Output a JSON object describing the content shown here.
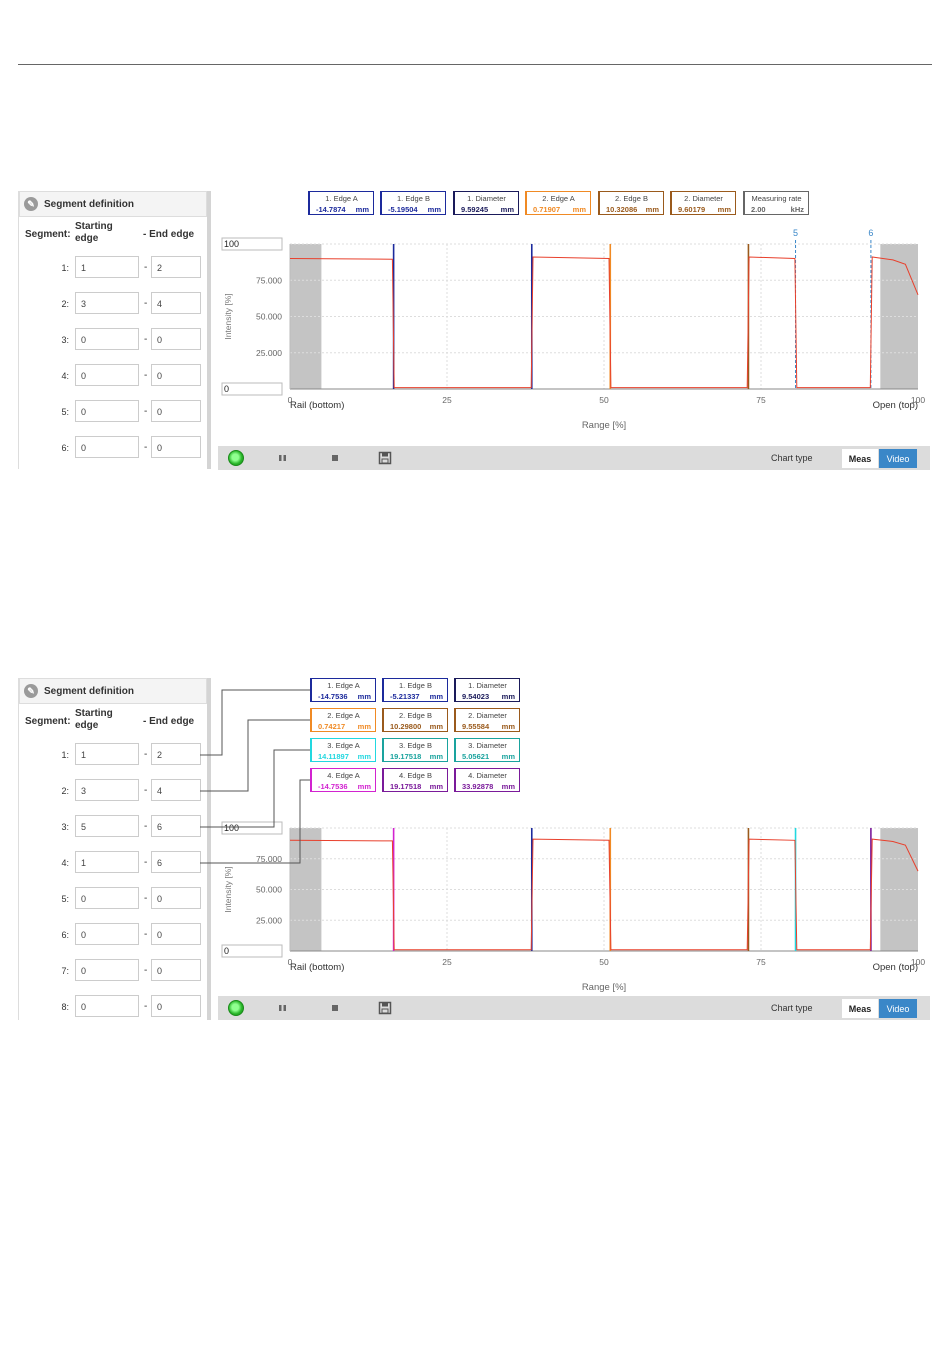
{
  "colors": {
    "red": "#e8402c",
    "navy": "#1c2a9c",
    "orange": "#f08a24",
    "brown": "#9a5a1c",
    "cyan": "#22d8e0",
    "teal": "#1aa39e",
    "magenta": "#d223d0",
    "purple": "#7a1a9a",
    "darknavy": "#1a1a5a"
  },
  "screenshots": [
    {
      "segment_panel": {
        "title": "Segment definition",
        "col_segment": "Segment:",
        "col_start": "Starting edge",
        "col_end": "- End edge",
        "rows": [
          {
            "num": "1:",
            "start": "1",
            "end": "2"
          },
          {
            "num": "2:",
            "start": "3",
            "end": "4"
          },
          {
            "num": "3:",
            "start": "0",
            "end": "0"
          },
          {
            "num": "4:",
            "start": "0",
            "end": "0"
          },
          {
            "num": "5:",
            "start": "0",
            "end": "0"
          },
          {
            "num": "6:",
            "start": "0",
            "end": "0"
          }
        ]
      },
      "measure_boxes": [
        {
          "label": "1. Edge A",
          "value": "-14.7874",
          "unit": "mm",
          "color": "navy"
        },
        {
          "label": "1. Edge B",
          "value": "-5.19504",
          "unit": "mm",
          "color": "navy"
        },
        {
          "label": "1. Diameter",
          "value": "9.59245",
          "unit": "mm",
          "color": "darknavy"
        },
        {
          "label": "2. Edge A",
          "value": "0.71907",
          "unit": "mm",
          "color": "orange"
        },
        {
          "label": "2. Edge B",
          "value": "10.32086",
          "unit": "mm",
          "color": "brown"
        },
        {
          "label": "2. Diameter",
          "value": "9.60179",
          "unit": "mm",
          "color": "brown"
        },
        {
          "label": "Measuring rate",
          "value": "2.00",
          "unit": "kHz",
          "color": "gray"
        }
      ],
      "chart_data": {
        "type": "line",
        "xlabel": "Range [%]",
        "ylabel": "Intensity [%]",
        "x_ticks": [
          "0",
          "25",
          "50",
          "75",
          "100"
        ],
        "y_ticks": [
          "25.000",
          "50.000",
          "75.000"
        ],
        "y_top_box": "100",
        "y_bottom_box": "0",
        "x_left_label": "Rail (bottom)",
        "x_right_label": "Open (top)",
        "xlim": [
          0,
          100
        ],
        "ylim": [
          0,
          100
        ],
        "grey_bands": [
          [
            0,
            5
          ],
          [
            94,
            100
          ]
        ],
        "edge_markers": [
          {
            "label": "5",
            "x": 80.5
          },
          {
            "label": "6",
            "x": 92.5
          }
        ],
        "edges": [
          {
            "x": 16.5,
            "color": "navy"
          },
          {
            "x": 38.5,
            "color": "navy"
          },
          {
            "x": 51.0,
            "color": "orange"
          },
          {
            "x": 73.0,
            "color": "brown"
          }
        ],
        "series": [
          {
            "color": "red",
            "points": [
              [
                0,
                90
              ],
              [
                16.3,
                89.5
              ],
              [
                16.6,
                1
              ],
              [
                38.4,
                1
              ],
              [
                38.7,
                91
              ],
              [
                50.8,
                90
              ],
              [
                51.1,
                1
              ],
              [
                72.8,
                1
              ],
              [
                73.1,
                91
              ],
              [
                80.4,
                90
              ],
              [
                80.7,
                1
              ],
              [
                92.4,
                1
              ],
              [
                92.7,
                91
              ],
              [
                96,
                89
              ],
              [
                98,
                86
              ],
              [
                100,
                65
              ]
            ]
          }
        ]
      },
      "toolbar": {
        "chart_type": "Chart type",
        "meas": "Meas",
        "video": "Video"
      }
    },
    {
      "segment_panel": {
        "title": "Segment definition",
        "col_segment": "Segment:",
        "col_start": "Starting edge",
        "col_end": "- End edge",
        "rows": [
          {
            "num": "1:",
            "start": "1",
            "end": "2"
          },
          {
            "num": "2:",
            "start": "3",
            "end": "4"
          },
          {
            "num": "3:",
            "start": "5",
            "end": "6"
          },
          {
            "num": "4:",
            "start": "1",
            "end": "6"
          },
          {
            "num": "5:",
            "start": "0",
            "end": "0"
          },
          {
            "num": "6:",
            "start": "0",
            "end": "0"
          },
          {
            "num": "7:",
            "start": "0",
            "end": "0"
          },
          {
            "num": "8:",
            "start": "0",
            "end": "0"
          }
        ]
      },
      "measure_boxes": [
        {
          "label": "1. Edge A",
          "value": "-14.7536",
          "unit": "mm",
          "color": "navy"
        },
        {
          "label": "1. Edge B",
          "value": "-5.21337",
          "unit": "mm",
          "color": "navy"
        },
        {
          "label": "1. Diameter",
          "value": "9.54023",
          "unit": "mm",
          "color": "darknavy"
        },
        {
          "label": "2. Edge A",
          "value": "0.74217",
          "unit": "mm",
          "color": "orange"
        },
        {
          "label": "2. Edge B",
          "value": "10.29800",
          "unit": "mm",
          "color": "brown"
        },
        {
          "label": "2. Diameter",
          "value": "9.55584",
          "unit": "mm",
          "color": "brown"
        },
        {
          "label": "3. Edge A",
          "value": "14.11897",
          "unit": "mm",
          "color": "cyan"
        },
        {
          "label": "3. Edge B",
          "value": "19.17518",
          "unit": "mm",
          "color": "teal"
        },
        {
          "label": "3. Diameter",
          "value": "5.05621",
          "unit": "mm",
          "color": "teal"
        },
        {
          "label": "4. Edge A",
          "value": "-14.7536",
          "unit": "mm",
          "color": "magenta"
        },
        {
          "label": "4. Edge B",
          "value": "19.17518",
          "unit": "mm",
          "color": "purple"
        },
        {
          "label": "4. Diameter",
          "value": "33.92878",
          "unit": "mm",
          "color": "purple"
        }
      ],
      "chart_data": {
        "type": "line",
        "xlabel": "Range [%]",
        "ylabel": "Intensity [%]",
        "x_ticks": [
          "0",
          "25",
          "50",
          "75",
          "100"
        ],
        "y_ticks": [
          "25.000",
          "50.000",
          "75.000"
        ],
        "y_top_box": "100",
        "y_bottom_box": "0",
        "x_left_label": "Rail (bottom)",
        "x_right_label": "Open (top)",
        "xlim": [
          0,
          100
        ],
        "ylim": [
          0,
          100
        ],
        "grey_bands": [
          [
            0,
            5
          ],
          [
            94,
            100
          ]
        ],
        "edge_markers": [],
        "edges": [
          {
            "x": 16.5,
            "color": "magenta"
          },
          {
            "x": 38.5,
            "color": "navy"
          },
          {
            "x": 51.0,
            "color": "orange"
          },
          {
            "x": 73.0,
            "color": "brown"
          },
          {
            "x": 80.5,
            "color": "cyan"
          },
          {
            "x": 92.5,
            "color": "purple"
          }
        ],
        "series": [
          {
            "color": "red",
            "points": [
              [
                0,
                90
              ],
              [
                16.3,
                89.5
              ],
              [
                16.6,
                1
              ],
              [
                38.4,
                1
              ],
              [
                38.7,
                91
              ],
              [
                50.8,
                90
              ],
              [
                51.1,
                1
              ],
              [
                72.8,
                1
              ],
              [
                73.1,
                91
              ],
              [
                80.4,
                90
              ],
              [
                80.7,
                1
              ],
              [
                92.4,
                1
              ],
              [
                92.7,
                91
              ],
              [
                96,
                89
              ],
              [
                98,
                86
              ],
              [
                100,
                65
              ]
            ]
          }
        ]
      },
      "toolbar": {
        "chart_type": "Chart type",
        "meas": "Meas",
        "video": "Video"
      }
    }
  ]
}
